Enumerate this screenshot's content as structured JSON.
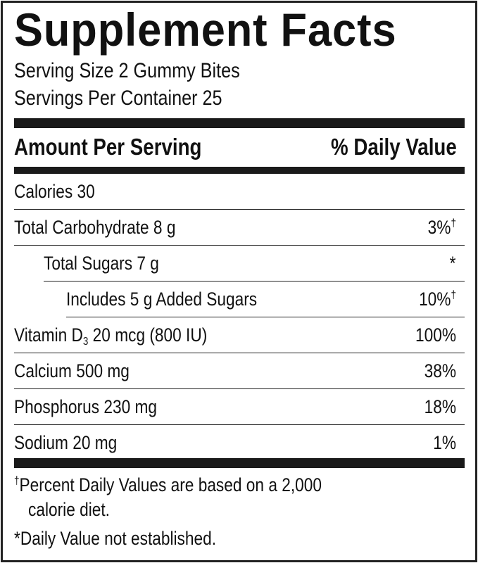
{
  "title": "Supplement Facts",
  "serving_size": "Serving Size 2 Gummy Bites",
  "servings_per_container": "Servings Per Container 25",
  "header": {
    "amount": "Amount Per Serving",
    "dv": "% Daily Value"
  },
  "rows": [
    {
      "label": "Calories 30",
      "value": ""
    },
    {
      "label": "Total Carbohydrate 8 g",
      "value": "3%",
      "mark": "†"
    },
    {
      "label": "Total Sugars 7 g",
      "value": "*"
    },
    {
      "label": "Includes 5 g Added Sugars",
      "value": "10%",
      "mark": "†"
    },
    {
      "label_pre": "Vitamin D",
      "label_sub": "3",
      "label_post": " 20 mcg (800 IU)",
      "value": "100%"
    },
    {
      "label": "Calcium 500 mg",
      "value": "38%"
    },
    {
      "label": "Phosphorus 230 mg",
      "value": "18%"
    },
    {
      "label": "Sodium 20 mg",
      "value": "1%"
    }
  ],
  "footnotes": {
    "dagger_mark": "†",
    "dagger_line1": "Percent Daily Values are based on a 2,000",
    "dagger_line2": "calorie diet.",
    "asterisk": "*Daily Value not established."
  }
}
